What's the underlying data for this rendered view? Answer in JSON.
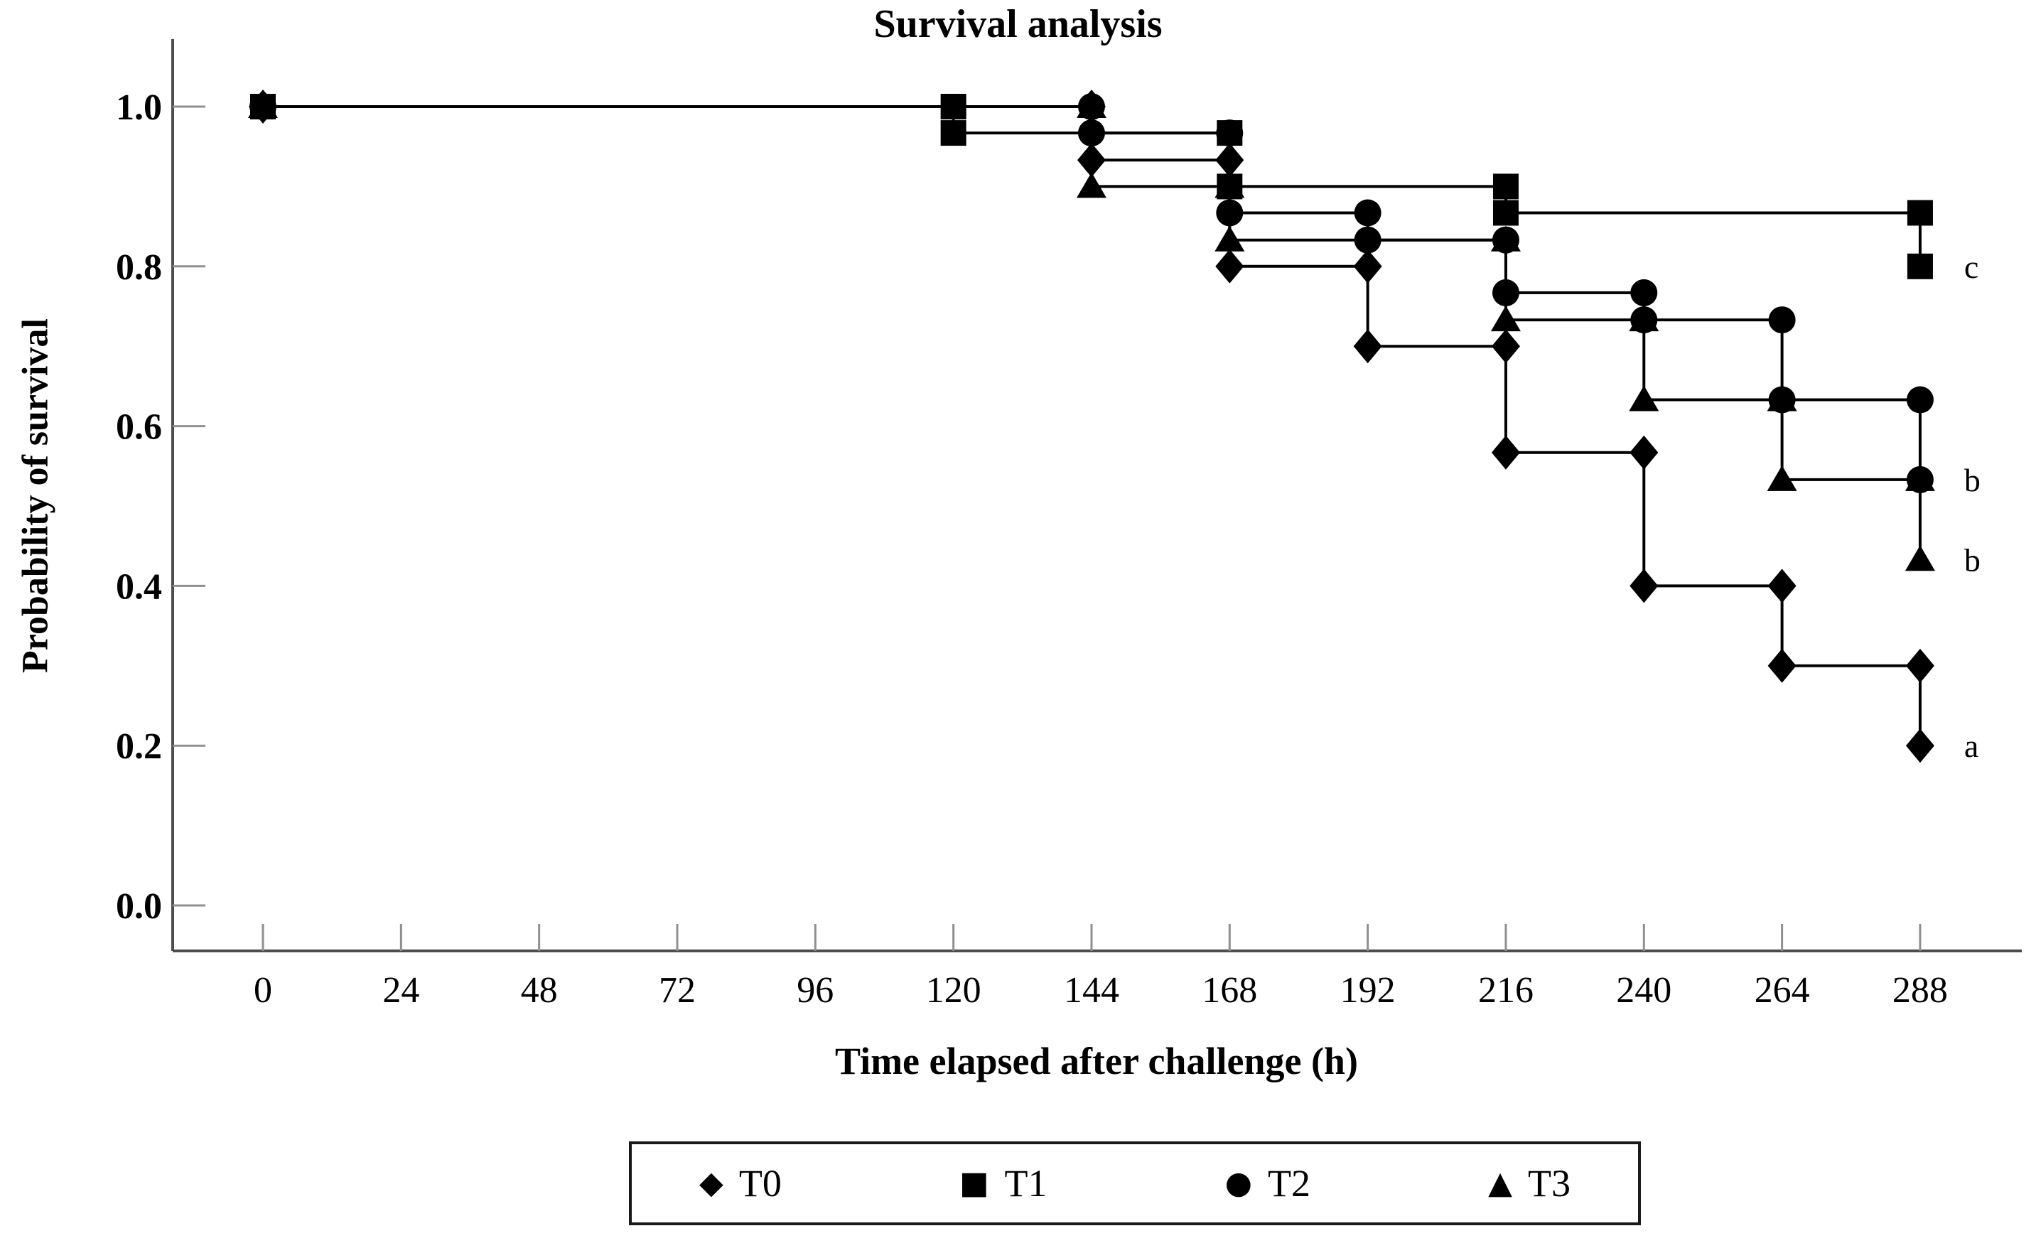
{
  "figure": {
    "background": "#ffffff",
    "line_color": "#000000",
    "axis_color": "#4d4d4d",
    "tick_color": "#8f8f8f"
  },
  "chart_data": {
    "type": "line",
    "subtype": "kaplan-meier-step-survival",
    "title": "Survival analysis",
    "xlabel": "Time elapsed after challenge (h)",
    "ylabel": "Probability of survival",
    "xlim": [
      -16,
      306
    ],
    "ylim": [
      -0.06,
      1.08
    ],
    "xticks": [
      0,
      24,
      48,
      72,
      96,
      120,
      144,
      168,
      192,
      216,
      240,
      264,
      288
    ],
    "yticks": [
      "0.0",
      "0.2",
      "0.4",
      "0.6",
      "0.8",
      "1.0"
    ],
    "grid": false,
    "legend_position": "bottom",
    "series": [
      {
        "name": "T0",
        "marker": "diamond",
        "end_label": "a",
        "points": [
          [
            0,
            1.0
          ],
          [
            144,
            1.0
          ],
          [
            144,
            0.933
          ],
          [
            168,
            0.933
          ],
          [
            168,
            0.8
          ],
          [
            192,
            0.8
          ],
          [
            192,
            0.7
          ],
          [
            216,
            0.7
          ],
          [
            216,
            0.567
          ],
          [
            240,
            0.567
          ],
          [
            240,
            0.4
          ],
          [
            264,
            0.4
          ],
          [
            264,
            0.3
          ],
          [
            288,
            0.3
          ],
          [
            288,
            0.2
          ]
        ]
      },
      {
        "name": "T3",
        "marker": "triangle",
        "end_label": "b",
        "points": [
          [
            0,
            1.0
          ],
          [
            144,
            1.0
          ],
          [
            144,
            0.9
          ],
          [
            168,
            0.9
          ],
          [
            168,
            0.833
          ],
          [
            216,
            0.833
          ],
          [
            216,
            0.733
          ],
          [
            240,
            0.733
          ],
          [
            240,
            0.633
          ],
          [
            264,
            0.633
          ],
          [
            264,
            0.533
          ],
          [
            288,
            0.533
          ],
          [
            288,
            0.433
          ]
        ]
      },
      {
        "name": "T2",
        "marker": "circle",
        "end_label": "b",
        "points": [
          [
            0,
            1.0
          ],
          [
            144,
            1.0
          ],
          [
            144,
            0.967
          ],
          [
            168,
            0.967
          ],
          [
            168,
            0.867
          ],
          [
            192,
            0.867
          ],
          [
            192,
            0.833
          ],
          [
            216,
            0.833
          ],
          [
            216,
            0.767
          ],
          [
            240,
            0.767
          ],
          [
            240,
            0.733
          ],
          [
            264,
            0.733
          ],
          [
            264,
            0.633
          ],
          [
            288,
            0.633
          ],
          [
            288,
            0.533
          ]
        ]
      },
      {
        "name": "T1",
        "marker": "square",
        "end_label": "c",
        "points": [
          [
            0,
            1.0
          ],
          [
            120,
            1.0
          ],
          [
            120,
            0.967
          ],
          [
            168,
            0.967
          ],
          [
            168,
            0.9
          ],
          [
            216,
            0.9
          ],
          [
            216,
            0.867
          ],
          [
            288,
            0.867
          ],
          [
            288,
            0.8
          ]
        ]
      }
    ]
  },
  "legend": {
    "items": [
      {
        "icon": "diamond-icon",
        "glyph": "◆",
        "label": "T0"
      },
      {
        "icon": "square-icon",
        "glyph": "■",
        "label": "T1"
      },
      {
        "icon": "circle-icon",
        "glyph": "●",
        "label": "T2"
      },
      {
        "icon": "triangle-icon",
        "glyph": "▲",
        "label": "T3"
      }
    ]
  }
}
